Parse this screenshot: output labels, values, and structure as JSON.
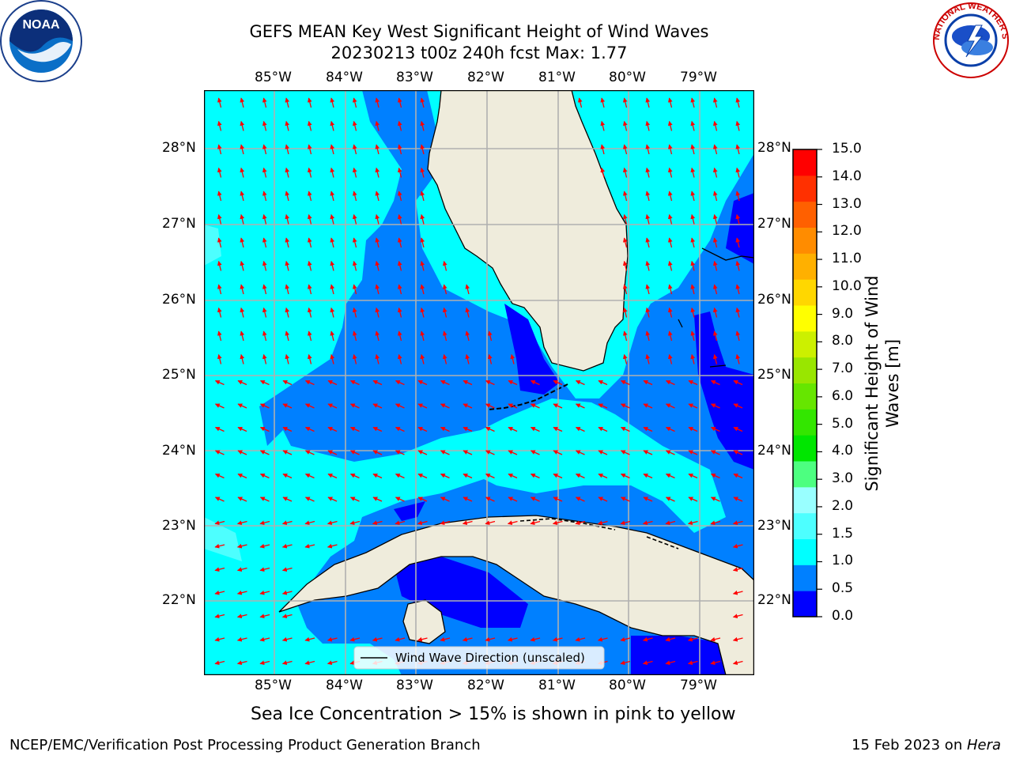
{
  "title": {
    "line1": "GEFS MEAN Key West Significant Height of Wind Waves",
    "line2": "20230213 t00z 240h fcst   Max: 1.77"
  },
  "logos": {
    "left": "noaa-logo",
    "right": "nws-logo",
    "left_text": "NOAA",
    "right_text": "NATIONAL WEATHER SERVICE"
  },
  "map": {
    "lon_labels": [
      "85°W",
      "84°W",
      "83°W",
      "82°W",
      "81°W",
      "80°W",
      "79°W"
    ],
    "lat_labels": [
      "28°N",
      "27°N",
      "26°N",
      "25°N",
      "24°N",
      "23°N",
      "22°N"
    ],
    "legend": "Wind Wave Direction (unscaled)",
    "land_color": "#efecdc",
    "arrow_color": "#ff0000"
  },
  "colorbar": {
    "label_line1": "Significant Height of Wind",
    "label_line2": "Waves [m]",
    "ticks": [
      "15.0",
      "14.0",
      "13.0",
      "12.0",
      "11.0",
      "10.0",
      "9.0",
      "8.0",
      "7.0",
      "6.0",
      "5.0",
      "4.0",
      "3.0",
      "2.0",
      "1.5",
      "1.0",
      "0.5",
      "0.0"
    ],
    "colors": [
      "#0000ff",
      "#0080ff",
      "#00ffff",
      "#4dffff",
      "#99ffff",
      "#4dff80",
      "#00e600",
      "#33e600",
      "#66e600",
      "#99e600",
      "#ccf000",
      "#ffff00",
      "#ffd700",
      "#ffb000",
      "#ff8c00",
      "#ff6000",
      "#ff3000",
      "#ff0000"
    ]
  },
  "caption": "Sea Ice Concentration > 15% is shown in pink to yellow",
  "footer": {
    "left": "NCEP/EMC/Verification Post Processing Product Generation Branch",
    "right_prefix": "15 Feb 2023 on ",
    "right_host": "Hera"
  }
}
